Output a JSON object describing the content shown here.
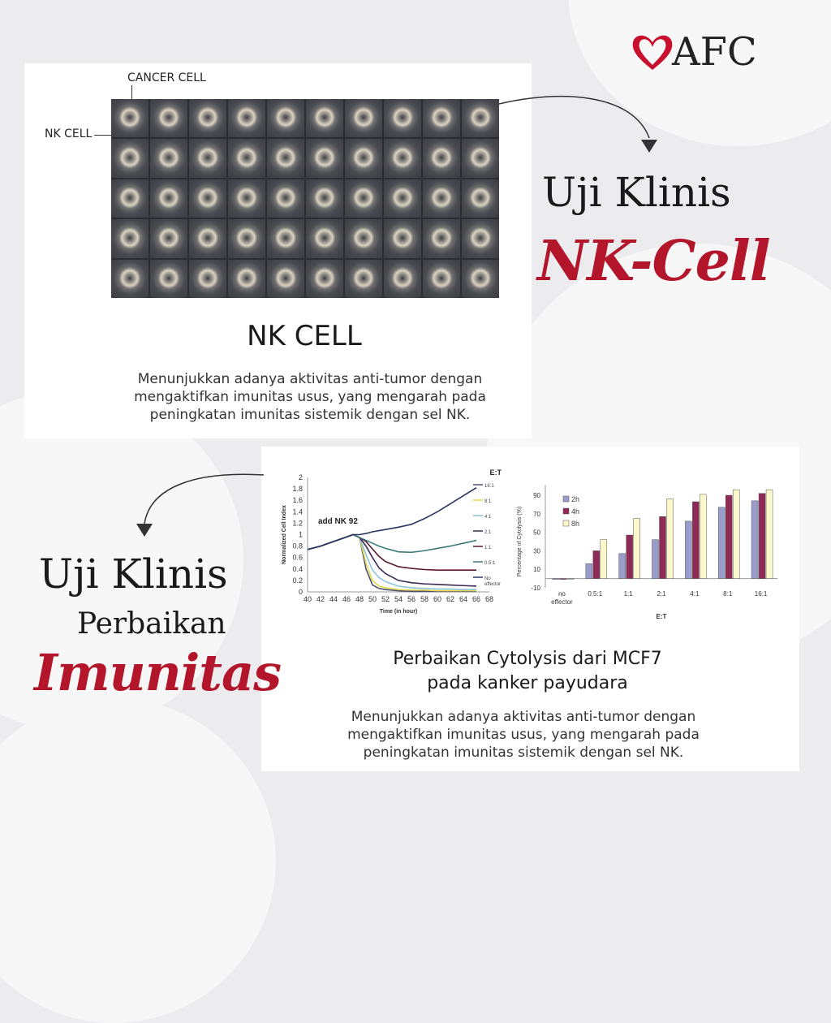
{
  "logo": {
    "text": "AFC",
    "brand_color": "#c8102e"
  },
  "card1": {
    "label_cancer": "CANCER CELL",
    "label_nk": "NK CELL",
    "title": "NK CELL",
    "description": "Menunjukkan adanya aktivitas anti-tumor dengan mengaktifkan imunitas usus, yang mengarah pada peningkatan imunitas sistemik dengan sel NK."
  },
  "heading1": {
    "line1": "Uji Klinis",
    "line2": "NK-Cell"
  },
  "heading2": {
    "line1": "Uji Klinis",
    "line2": "Perbaikan",
    "line3": "Imunitas"
  },
  "card2": {
    "title_line1": "Perbaikan Cytolysis dari MCF7",
    "title_line2": "pada kanker payudara",
    "description": "Menunjukkan adanya aktivitas anti-tumor dengan mengaktifkan imunitas usus, yang mengarah pada peningkatan imunitas sistemik dengan sel NK."
  },
  "chart_data": [
    {
      "type": "line",
      "xlabel": "Time (in hour)",
      "ylabel": "Normalized Cell Index",
      "legend_title": "E:T",
      "annotation": "add NK 92",
      "xlim": [
        40,
        68
      ],
      "ylim": [
        0,
        2
      ],
      "xticks": [
        40,
        42,
        44,
        46,
        48,
        50,
        52,
        54,
        56,
        58,
        60,
        62,
        64,
        66,
        68
      ],
      "yticks": [
        0,
        0.2,
        0.4,
        0.6,
        0.8,
        1,
        1.2,
        1.4,
        1.6,
        1.8,
        2
      ],
      "x": [
        40,
        42,
        44,
        46,
        47,
        48,
        49,
        50,
        51,
        52,
        54,
        56,
        58,
        60,
        62,
        64,
        66
      ],
      "series": [
        {
          "name": "16:1",
          "color": "#4b4f6e",
          "values": [
            0.74,
            0.8,
            0.88,
            0.96,
            1.0,
            0.95,
            0.4,
            0.12,
            0.06,
            0.04,
            0.02,
            0.01,
            0.01,
            0.01,
            0.01,
            0.01,
            0.01
          ]
        },
        {
          "name": "8:1",
          "color": "#e4d84c",
          "values": [
            0.74,
            0.8,
            0.88,
            0.96,
            1.0,
            0.95,
            0.5,
            0.2,
            0.1,
            0.07,
            0.04,
            0.03,
            0.03,
            0.02,
            0.02,
            0.02,
            0.02
          ]
        },
        {
          "name": "4:1",
          "color": "#8fc3d8",
          "values": [
            0.74,
            0.8,
            0.88,
            0.96,
            1.0,
            0.95,
            0.65,
            0.38,
            0.25,
            0.18,
            0.1,
            0.07,
            0.06,
            0.05,
            0.05,
            0.04,
            0.04
          ]
        },
        {
          "name": "2:1",
          "color": "#3b2a55",
          "values": [
            0.74,
            0.8,
            0.88,
            0.96,
            1.0,
            0.95,
            0.8,
            0.6,
            0.42,
            0.32,
            0.2,
            0.16,
            0.14,
            0.13,
            0.12,
            0.11,
            0.1
          ]
        },
        {
          "name": "1:1",
          "color": "#5a1a2e",
          "values": [
            0.74,
            0.8,
            0.88,
            0.96,
            1.0,
            0.95,
            0.88,
            0.75,
            0.62,
            0.53,
            0.44,
            0.41,
            0.39,
            0.38,
            0.38,
            0.38,
            0.38
          ]
        },
        {
          "name": "0.5:1",
          "color": "#3c7b7a",
          "values": [
            0.74,
            0.8,
            0.88,
            0.96,
            1.0,
            0.95,
            0.9,
            0.85,
            0.8,
            0.76,
            0.7,
            0.69,
            0.72,
            0.76,
            0.8,
            0.85,
            0.9
          ]
        },
        {
          "name": "No effector",
          "color": "#2b3563",
          "values": [
            0.74,
            0.8,
            0.88,
            0.96,
            1.0,
            1.0,
            1.02,
            1.05,
            1.07,
            1.09,
            1.13,
            1.18,
            1.28,
            1.4,
            1.54,
            1.68,
            1.82
          ]
        }
      ]
    },
    {
      "type": "bar",
      "xlabel": "E:T",
      "ylabel": "Percentage of Cytolysis (%)",
      "ylim": [
        -10,
        100
      ],
      "yticks": [
        -10,
        10,
        30,
        50,
        70,
        90
      ],
      "legend": "top-left",
      "categories": [
        "no effector",
        "0.5:1",
        "1:1",
        "2:1",
        "4:1",
        "8:1",
        "16:1"
      ],
      "series": [
        {
          "name": "2h",
          "color": "#9a9ccc",
          "values": [
            0,
            16,
            27,
            42,
            62,
            77,
            84
          ]
        },
        {
          "name": "4h",
          "color": "#8e2a55",
          "values": [
            0,
            30,
            47,
            67,
            83,
            90,
            92
          ]
        },
        {
          "name": "8h",
          "color": "#fbf8cc",
          "values": [
            0,
            42,
            65,
            86,
            91,
            96,
            96
          ]
        }
      ]
    }
  ]
}
